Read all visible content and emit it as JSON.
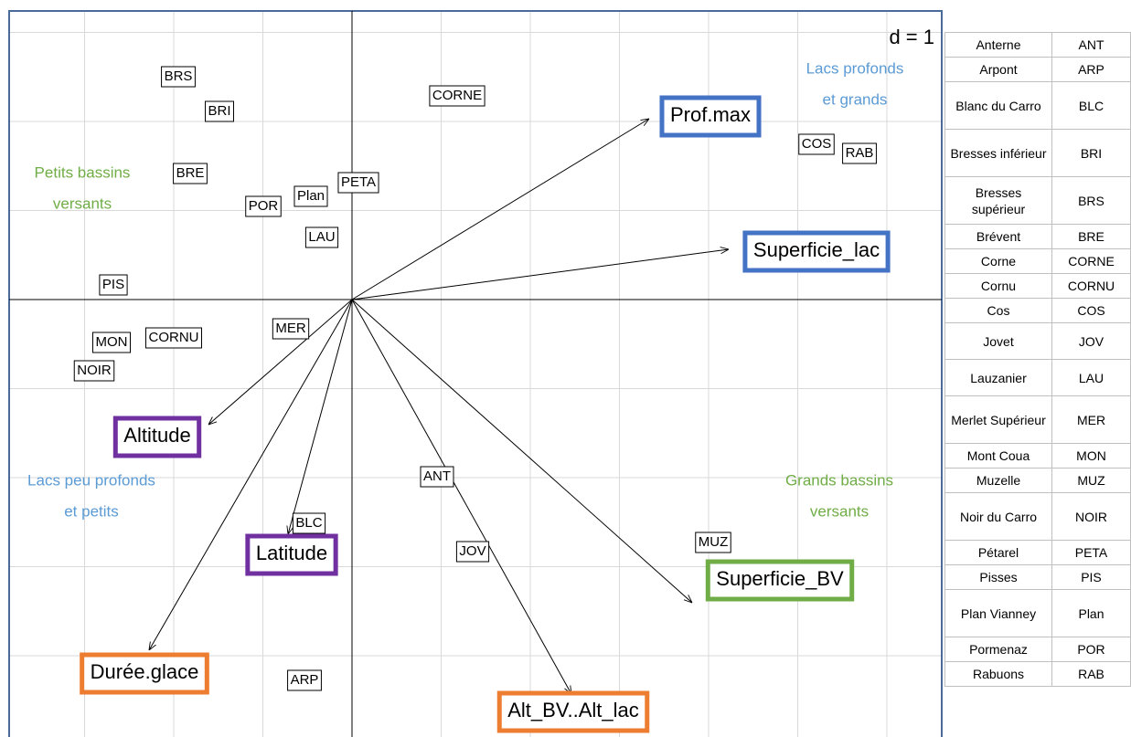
{
  "plot": {
    "scale_label": "d = 1",
    "annotations": [
      [
        "Lacs profonds",
        "et grands"
      ],
      [
        "Petits bassins",
        "versants"
      ],
      [
        "Lacs peu profonds",
        "et petits"
      ],
      [
        "Grands bassins",
        "versants"
      ]
    ],
    "lakes": [
      "BRS",
      "BRI",
      "CORNE",
      "COS",
      "RAB",
      "BRE",
      "PETA",
      "Plan",
      "POR",
      "LAU",
      "PIS",
      "MER",
      "CORNU",
      "MON",
      "NOIR",
      "ANT",
      "BLC",
      "MUZ",
      "JOV",
      "ARP"
    ],
    "variables": [
      "Prof.max",
      "Superficie_lac",
      "Altitude",
      "Latitude",
      "Superficie_BV",
      "Durée.glace",
      "Alt_BV..Alt_lac"
    ]
  },
  "table": {
    "rows": [
      [
        "Anterne",
        "ANT"
      ],
      [
        "Arpont",
        "ARP"
      ],
      [
        "Blanc du Carro",
        "BLC"
      ],
      [
        "Bresses inférieur",
        "BRI"
      ],
      [
        "Bresses supérieur",
        "BRS"
      ],
      [
        "Brévent",
        "BRE"
      ],
      [
        "Corne",
        "CORNE"
      ],
      [
        "Cornu",
        "CORNU"
      ],
      [
        "Cos",
        "COS"
      ],
      [
        "Jovet",
        "JOV"
      ],
      [
        "Lauzanier",
        "LAU"
      ],
      [
        "Merlet Supérieur",
        "MER"
      ],
      [
        "Mont Coua",
        "MON"
      ],
      [
        "Muzelle",
        "MUZ"
      ],
      [
        "Noir du Carro",
        "NOIR"
      ],
      [
        "Pétarel",
        "PETA"
      ],
      [
        "Pisses",
        "PIS"
      ],
      [
        "Plan Vianney",
        "Plan"
      ],
      [
        "Pormenaz",
        "POR"
      ],
      [
        "Rabuons",
        "RAB"
      ]
    ]
  }
}
